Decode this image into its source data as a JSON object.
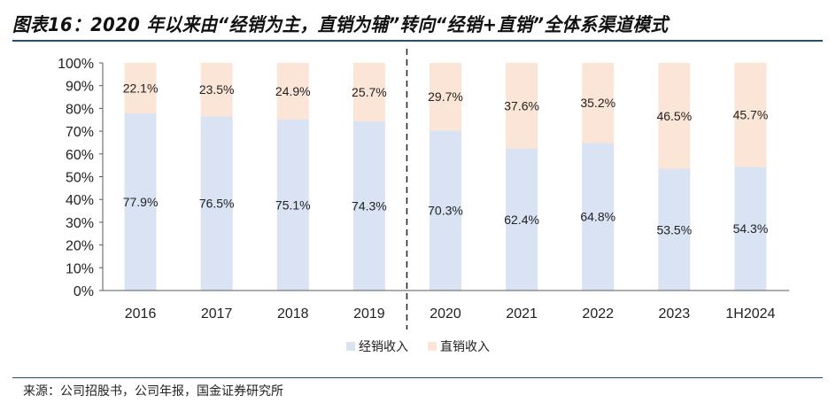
{
  "title": "图表16：2020 年以来由“经销为主，直销为辅”转向“经销+直销”全体系渠道模式",
  "source": "来源：公司招股书，公司年报，国金证券研究所",
  "colors": {
    "distribution": "#dae3f3",
    "direct": "#fbe5d6",
    "axis": "#595959",
    "rule": "#1f4e79"
  },
  "chart_data": {
    "type": "bar",
    "stacked": true,
    "percent": true,
    "categories": [
      "2016",
      "2017",
      "2018",
      "2019",
      "2020",
      "2021",
      "2022",
      "2023",
      "1H2024"
    ],
    "series": [
      {
        "name": "经销收入",
        "values": [
          77.9,
          76.5,
          75.1,
          74.3,
          70.3,
          62.4,
          64.8,
          53.5,
          54.3
        ],
        "labels": [
          "77.9%",
          "76.5%",
          "75.1%",
          "74.3%",
          "70.3%",
          "62.4%",
          "64.8%",
          "53.5%",
          "54.3%"
        ]
      },
      {
        "name": "直销收入",
        "values": [
          22.1,
          23.5,
          24.9,
          25.7,
          29.7,
          37.6,
          35.2,
          46.5,
          45.7
        ],
        "labels": [
          "22.1%",
          "23.5%",
          "24.9%",
          "25.7%",
          "29.7%",
          "37.6%",
          "35.2%",
          "46.5%",
          "45.7%"
        ]
      }
    ],
    "yticks": [
      "0%",
      "10%",
      "20%",
      "30%",
      "40%",
      "50%",
      "60%",
      "70%",
      "80%",
      "90%",
      "100%"
    ],
    "ylim": [
      0,
      100
    ],
    "divider_after_category": "2019",
    "legend_position": "bottom",
    "grid": false,
    "xlabel": "",
    "ylabel": ""
  }
}
